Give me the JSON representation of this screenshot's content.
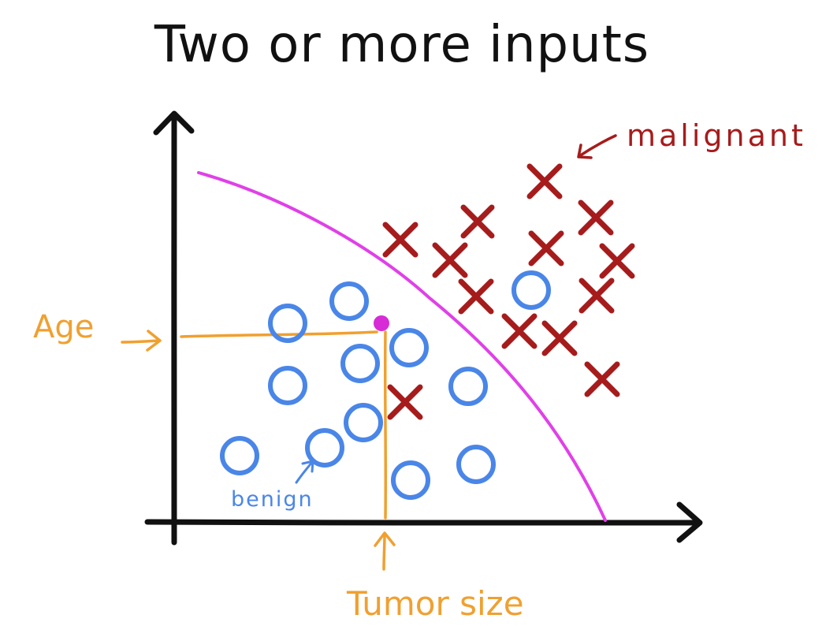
{
  "title": "Two or more inputs",
  "labels": {
    "age": "Age",
    "tumor_size": "Tumor size",
    "malignant": "malignant",
    "benign": "benign"
  },
  "colors": {
    "axis": "#111111",
    "benign": "#4a86e8",
    "malignant": "#a61c1c",
    "boundary": "#e040e8",
    "annotation": "#f0a030",
    "point": "#d62bd6"
  },
  "icons": {
    "malignant_marker": "x-mark-icon",
    "benign_marker": "circle-icon",
    "axis_head": "arrowhead-icon"
  }
}
